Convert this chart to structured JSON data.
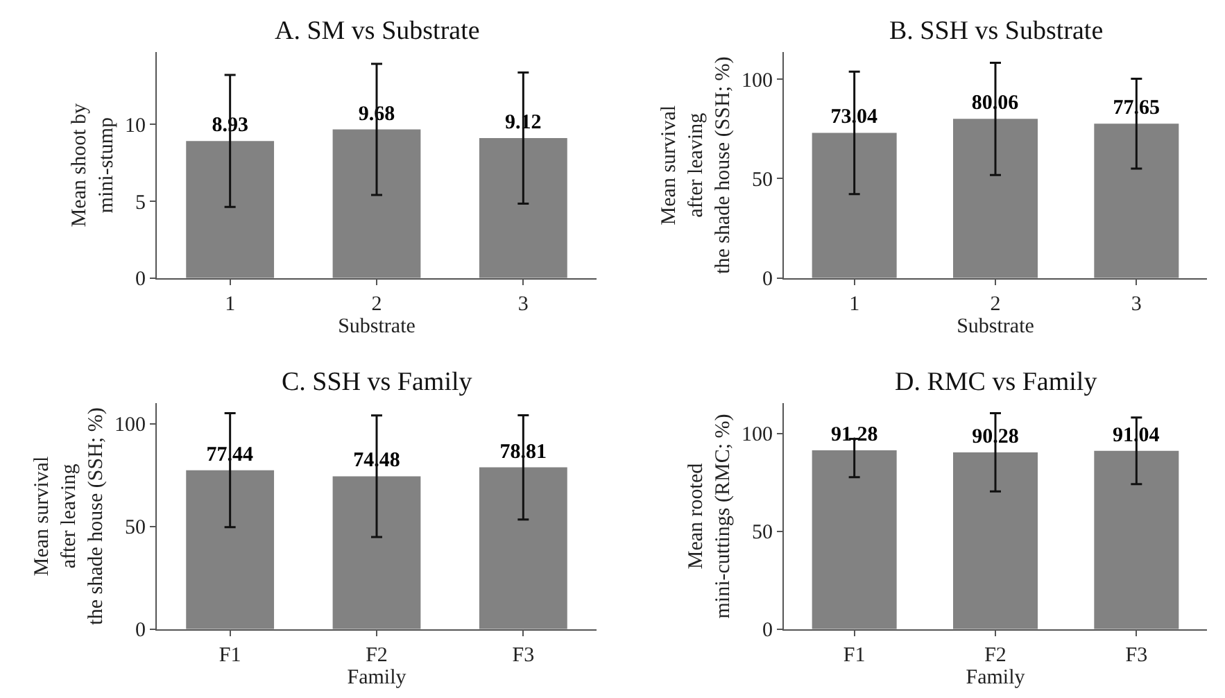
{
  "chart_data": [
    {
      "type": "bar",
      "title": "A. SM vs Substrate",
      "xlabel": "Substrate",
      "ylabel": "Mean shoot by\nmini-stump",
      "categories": [
        "1",
        "2",
        "3"
      ],
      "values": [
        8.93,
        9.68,
        9.12
      ],
      "errors": [
        4.3,
        4.27,
        4.27
      ],
      "color": "#828282",
      "ylim": [
        0,
        14.7
      ],
      "yticks": [
        0,
        5,
        10
      ],
      "data_labels": true
    },
    {
      "type": "bar",
      "title": "B. SSH vs Substrate",
      "xlabel": "Substrate",
      "ylabel": "Mean survival\nafter leaving\nthe shade house (SSH; %)",
      "categories": [
        "1",
        "2",
        "3"
      ],
      "values": [
        73.04,
        80.06,
        77.65
      ],
      "errors": [
        30.8,
        28.2,
        22.6
      ],
      "color": "#828282",
      "ylim": [
        0,
        113.5
      ],
      "yticks": [
        0,
        50,
        100
      ],
      "data_labels": true
    },
    {
      "type": "bar",
      "title": "C. SSH vs Family",
      "xlabel": "Family",
      "ylabel": "Mean survival\nafter leaving\nthe shade house (SSH; %)",
      "categories": [
        "F1",
        "F2",
        "F3"
      ],
      "values": [
        77.44,
        74.48,
        78.81
      ],
      "errors": [
        27.8,
        29.6,
        25.4
      ],
      "color": "#828282",
      "ylim": [
        0,
        110
      ],
      "yticks": [
        0,
        50,
        100
      ],
      "data_labels": true
    },
    {
      "type": "bar",
      "title": "D. RMC vs Family",
      "xlabel": "Family",
      "ylabel": "Mean rooted\nmini-cuttings (RMC; %)",
      "categories": [
        "F1",
        "F2",
        "F3"
      ],
      "values": [
        91.28,
        90.28,
        91.04
      ],
      "errors": [
        [
          77.6,
          97.2
        ],
        20,
        17
      ],
      "color": "#828282",
      "ylim": [
        0,
        115.3
      ],
      "yticks": [
        0,
        50,
        100
      ],
      "data_labels": true
    }
  ]
}
